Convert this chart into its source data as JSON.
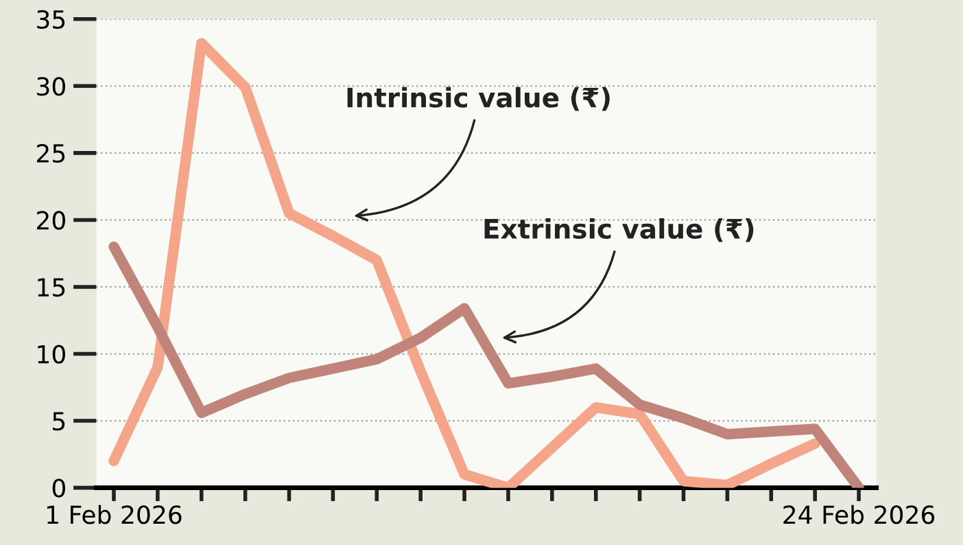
{
  "chart_data": {
    "type": "line",
    "categories": [
      "1 Feb 2026",
      null,
      null,
      null,
      null,
      null,
      null,
      null,
      null,
      null,
      null,
      null,
      null,
      null,
      null,
      null,
      null,
      "24 Feb 2026"
    ],
    "ylim": [
      0,
      35
    ],
    "yticks": [
      0,
      5,
      10,
      15,
      20,
      25,
      30,
      35
    ],
    "grid": "y",
    "legend": false,
    "marker": "none",
    "line_style": "solid",
    "series": [
      {
        "color": "#f4a58a",
        "values": [
          2.0,
          9.0,
          33.2,
          29.9,
          20.5,
          18.8,
          17.0,
          8.7,
          1.0,
          0,
          3.0,
          6.0,
          5.5,
          0.5,
          0.2,
          1.8,
          3.3,
          null
        ]
      },
      {
        "color": "#c0847a",
        "values": [
          18.0,
          12.0,
          5.6,
          7.0,
          8.2,
          8.9,
          9.6,
          11.2,
          13.4,
          7.8,
          8.3,
          8.9,
          6.2,
          5.2,
          4.0,
          4.2,
          4.4,
          0
        ]
      }
    ],
    "annotations": [
      "Intrinsic value (₹)",
      "Extrinsic value (₹)"
    ]
  }
}
